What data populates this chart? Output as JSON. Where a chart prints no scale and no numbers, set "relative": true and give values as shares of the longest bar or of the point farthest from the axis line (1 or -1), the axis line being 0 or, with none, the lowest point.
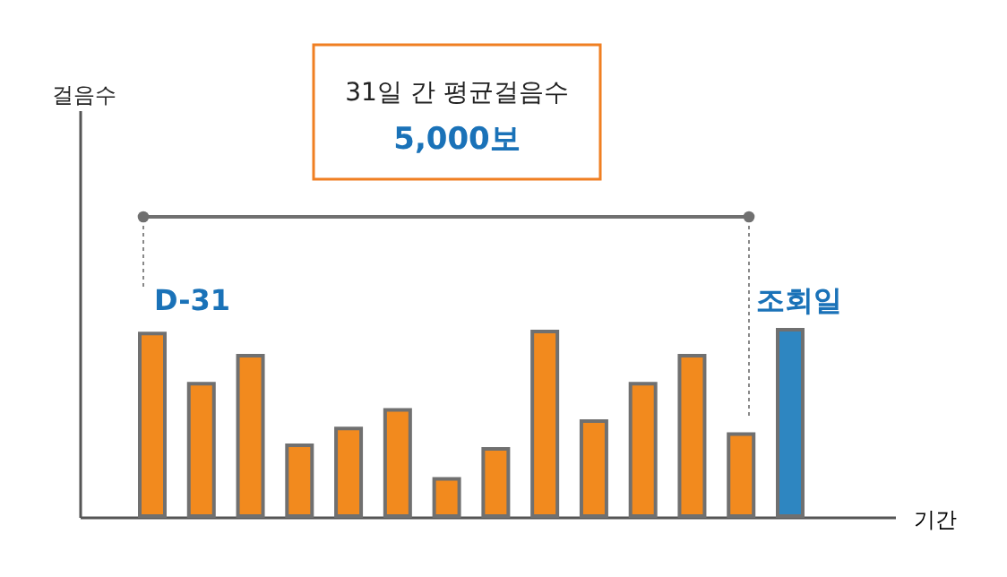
{
  "chart_data": {
    "type": "bar",
    "relative": true,
    "categories": [
      null,
      null,
      null,
      null,
      null,
      null,
      null,
      null,
      null,
      null,
      null,
      null,
      null,
      null
    ],
    "values": [
      0.98,
      0.71,
      0.86,
      0.38,
      0.47,
      0.57,
      0.2,
      0.36,
      0.99,
      0.51,
      0.71,
      0.86,
      0.44,
      1.0
    ],
    "colors": [
      "#f28a1e",
      "#f28a1e",
      "#f28a1e",
      "#f28a1e",
      "#f28a1e",
      "#f28a1e",
      "#f28a1e",
      "#f28a1e",
      "#f28a1e",
      "#f28a1e",
      "#f28a1e",
      "#f28a1e",
      "#f28a1e",
      "#2e86c1"
    ],
    "xlabel": "기간",
    "annotations": [
      "31일 간 평균걸음수",
      "5,000보",
      "D-31",
      "조회일",
      "걸음수"
    ]
  }
}
